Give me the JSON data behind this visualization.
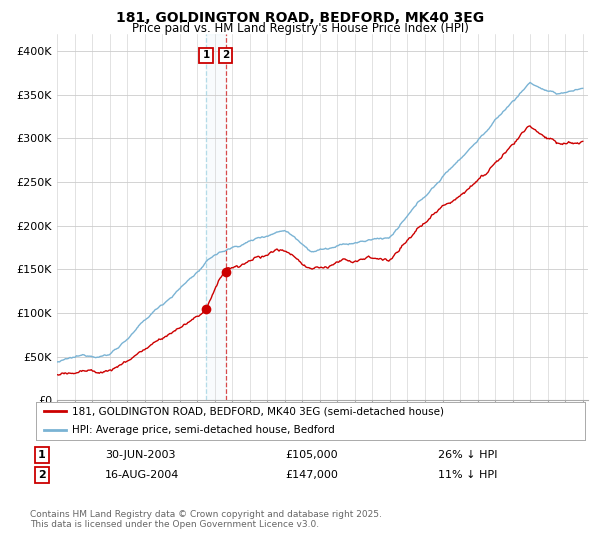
{
  "title": "181, GOLDINGTON ROAD, BEDFORD, MK40 3EG",
  "subtitle": "Price paid vs. HM Land Registry's House Price Index (HPI)",
  "ylabel_ticks": [
    "£0",
    "£50K",
    "£100K",
    "£150K",
    "£200K",
    "£250K",
    "£300K",
    "£350K",
    "£400K"
  ],
  "ytick_values": [
    0,
    50000,
    100000,
    150000,
    200000,
    250000,
    300000,
    350000,
    400000
  ],
  "ylim": [
    0,
    420000
  ],
  "sale1": {
    "date_num": 2003.5,
    "price": 105000,
    "label": "1",
    "date_str": "30-JUN-2003",
    "pct": "26% ↓ HPI"
  },
  "sale2": {
    "date_num": 2004.62,
    "price": 147000,
    "label": "2",
    "date_str": "16-AUG-2004",
    "pct": "11% ↓ HPI"
  },
  "legend_line1": "181, GOLDINGTON ROAD, BEDFORD, MK40 3EG (semi-detached house)",
  "legend_line2": "HPI: Average price, semi-detached house, Bedford",
  "footer": "Contains HM Land Registry data © Crown copyright and database right 2025.\nThis data is licensed under the Open Government Licence v3.0.",
  "hpi_color": "#7ab3d4",
  "price_color": "#cc0000",
  "background_color": "#ffffff",
  "grid_color": "#cccccc"
}
